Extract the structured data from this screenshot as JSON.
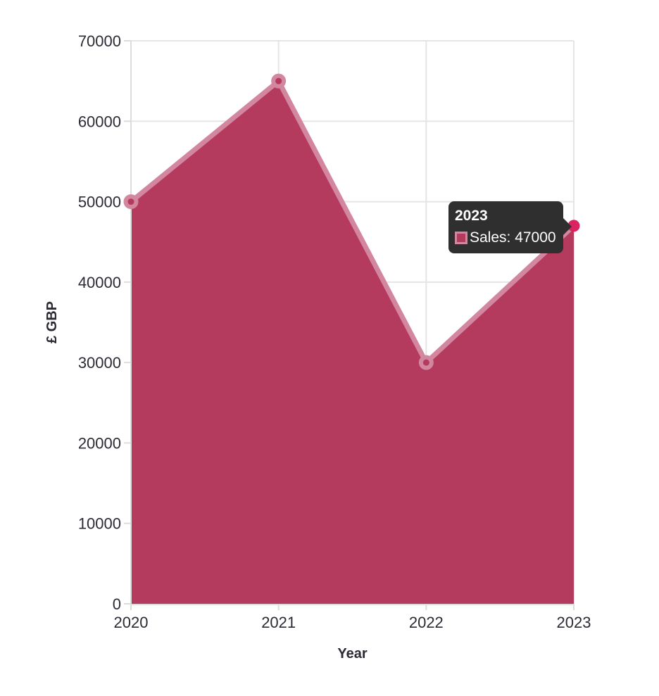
{
  "chart_data": {
    "type": "area",
    "title": "",
    "categories": [
      "2020",
      "2021",
      "2022",
      "2023"
    ],
    "series": [
      {
        "name": "Sales",
        "values": [
          50000,
          65000,
          30000,
          47000
        ]
      }
    ],
    "xlabel": "Year",
    "ylabel": "£ GBP",
    "ylim": [
      0,
      70000
    ],
    "ytick_step": 10000,
    "ytick_labels": [
      "0",
      "10000",
      "20000",
      "30000",
      "40000",
      "50000",
      "60000",
      "70000"
    ],
    "grid": true,
    "legend_position": "none",
    "active_point": {
      "category_index": 3,
      "value": 47000
    },
    "colors": {
      "area_fill": "#b53b5e",
      "line": "#d286a0",
      "point_fill": "#b53b5e",
      "point_border": "#d286a0",
      "active_point": "#da2360",
      "grid_line": "#e5e5e5",
      "axis_line": "#dcdcdc",
      "tick_text": "#2b2b36",
      "axis_title_text": "#2b2b36"
    }
  },
  "tooltip": {
    "title": "2023",
    "items": [
      {
        "label": "Sales: 47000",
        "swatch_fill": "#b53b5e",
        "swatch_border": "#d286a0"
      }
    ],
    "background": "#2f2f2f",
    "text_color": "#ffffff"
  }
}
